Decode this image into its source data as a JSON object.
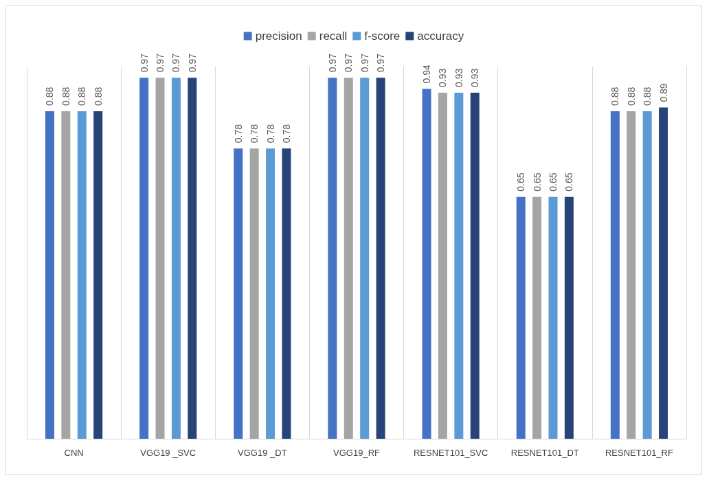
{
  "chart_data": {
    "type": "bar",
    "categories": [
      "CNN",
      "VGG19 _SVC",
      "VGG19 _DT",
      "VGG19_RF",
      "RESNET101_SVC",
      "RESNET101_DT",
      "RESNET101_RF"
    ],
    "series": [
      {
        "name": "precision",
        "color": "#4472c4",
        "values": [
          0.88,
          0.97,
          0.78,
          0.97,
          0.94,
          0.65,
          0.88
        ]
      },
      {
        "name": "recall",
        "color": "#a5a5a5",
        "values": [
          0.88,
          0.97,
          0.78,
          0.97,
          0.93,
          0.65,
          0.88
        ]
      },
      {
        "name": "f-score",
        "color": "#5b9bd5",
        "values": [
          0.88,
          0.97,
          0.78,
          0.97,
          0.93,
          0.65,
          0.88
        ]
      },
      {
        "name": "accuracy",
        "color": "#264478",
        "values": [
          0.88,
          0.97,
          0.78,
          0.97,
          0.93,
          0.65,
          0.89
        ]
      }
    ],
    "data_labels": true,
    "grid": "x",
    "legend": "top"
  }
}
